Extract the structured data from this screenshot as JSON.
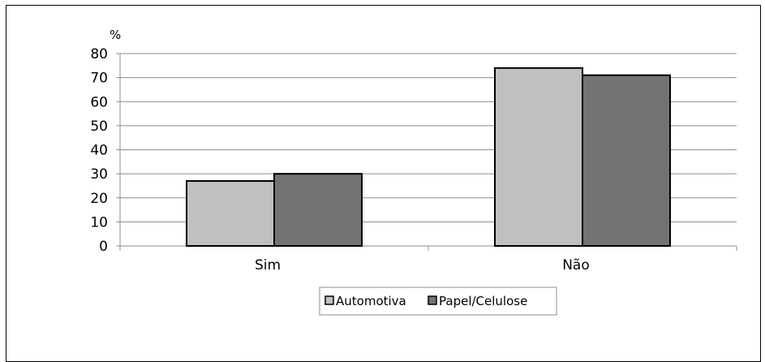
{
  "chart_data": {
    "type": "bar",
    "title": "",
    "xlabel": "",
    "ylabel": "%",
    "categories": [
      "Sim",
      "Não"
    ],
    "series": [
      {
        "name": "Automotiva",
        "values": [
          27,
          74
        ],
        "color": "#c0c0c0"
      },
      {
        "name": "Papel/Celulose",
        "values": [
          30,
          71
        ],
        "color": "#737373"
      }
    ],
    "ylim": [
      0,
      80
    ],
    "yticks": [
      "0",
      "10",
      "20",
      "30",
      "40",
      "50",
      "60",
      "70",
      "80"
    ],
    "grid": true,
    "legend_position": "bottom"
  }
}
